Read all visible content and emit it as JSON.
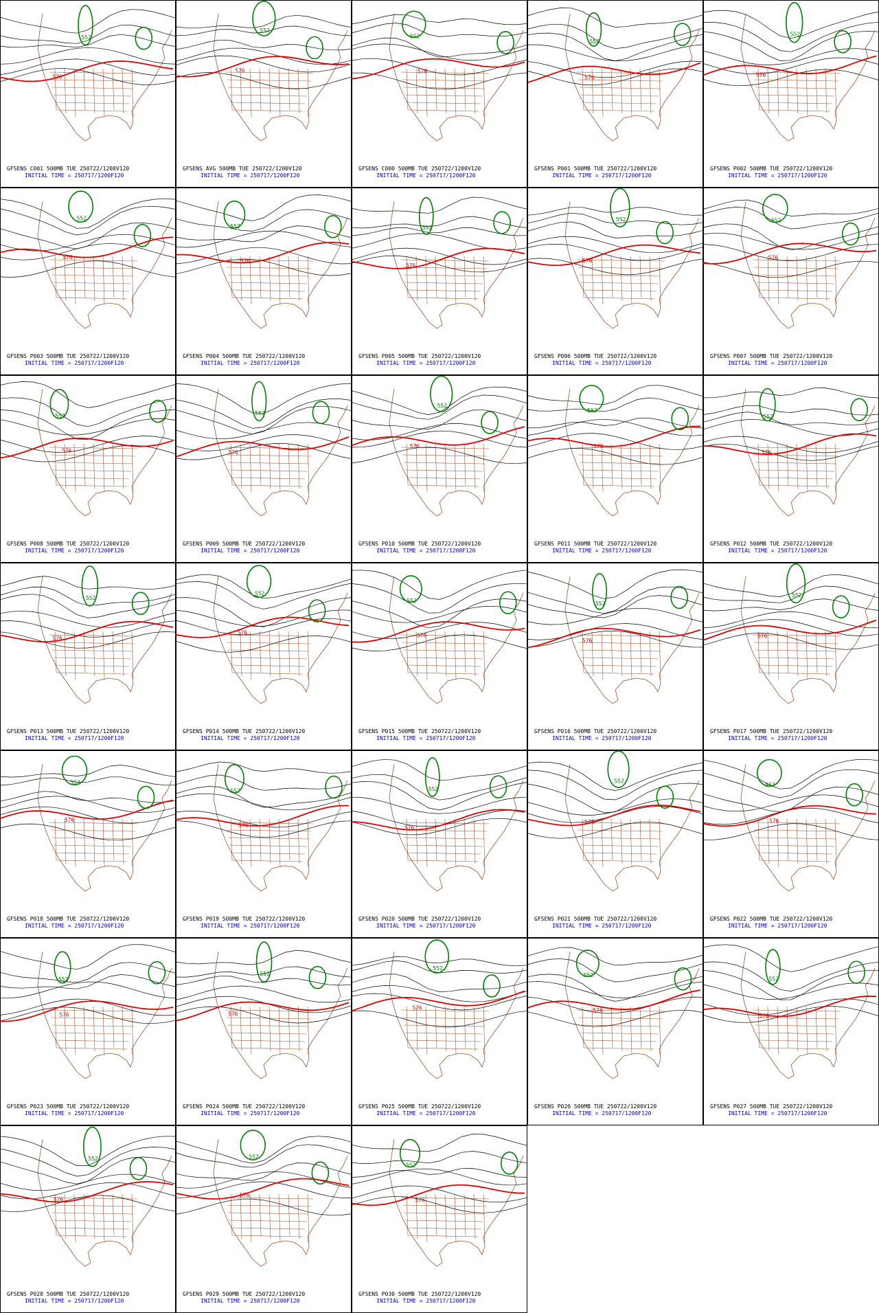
{
  "initial_time": "INITIAL TIME = 250717/1200F120",
  "contour_labels": {
    "green": "552",
    "red": "576"
  },
  "panels": [
    "GFSENS C001 500MB TUE 250722/1200V120",
    "GFSENS AVG 500MB TUE 250722/1200V120",
    "GFSENS C000 500MB TUE 250722/1200V120",
    "GFSENS P001 500MB TUE 250722/1200V120",
    "GFSENS P002 500MB TUE 250722/1200V120",
    "GFSENS P003 500MB TUE 250722/1200V120",
    "GFSENS P004 500MB TUE 250722/1200V120",
    "GFSENS P005 500MB TUE 250722/1200V120",
    "GFSENS P006 500MB TUE 250722/1200V120",
    "GFSENS P007 500MB TUE 250722/1200V120",
    "GFSENS P008 500MB TUE 250722/1200V120",
    "GFSENS P009 500MB TUE 250722/1200V120",
    "GFSENS P010 500MB TUE 250722/1200V120",
    "GFSENS P011 500MB TUE 250722/1200V120",
    "GFSENS P012 500MB TUE 250722/1200V120",
    "GFSENS P013 500MB TUE 250722/1200V120",
    "GFSENS P014 500MB TUE 250722/1200V120",
    "GFSENS P015 500MB TUE 250722/1200V120",
    "GFSENS P016 500MB TUE 250722/1200V120",
    "GFSENS P017 500MB TUE 250722/1200V120",
    "GFSENS P018 500MB TUE 250722/1200V120",
    "GFSENS P019 500MB TUE 250722/1200V120",
    "GFSENS P020 500MB TUE 250722/1200V120",
    "GFSENS P021 500MB TUE 250722/1200V120",
    "GFSENS P022 500MB TUE 250722/1200V120",
    "GFSENS P023 500MB TUE 250722/1200V120",
    "GFSENS P024 500MB TUE 250722/1200V120",
    "GFSENS P025 500MB TUE 250722/1200V120",
    "GFSENS P026 500MB TUE 250722/1200V120",
    "GFSENS P027 500MB TUE 250722/1200V120",
    "GFSENS P028 500MB TUE 250722/1200V120",
    "GFSENS P029 500MB TUE 250722/1200V120",
    "GFSENS P030 500MB TUE 250722/1200V120"
  ]
}
